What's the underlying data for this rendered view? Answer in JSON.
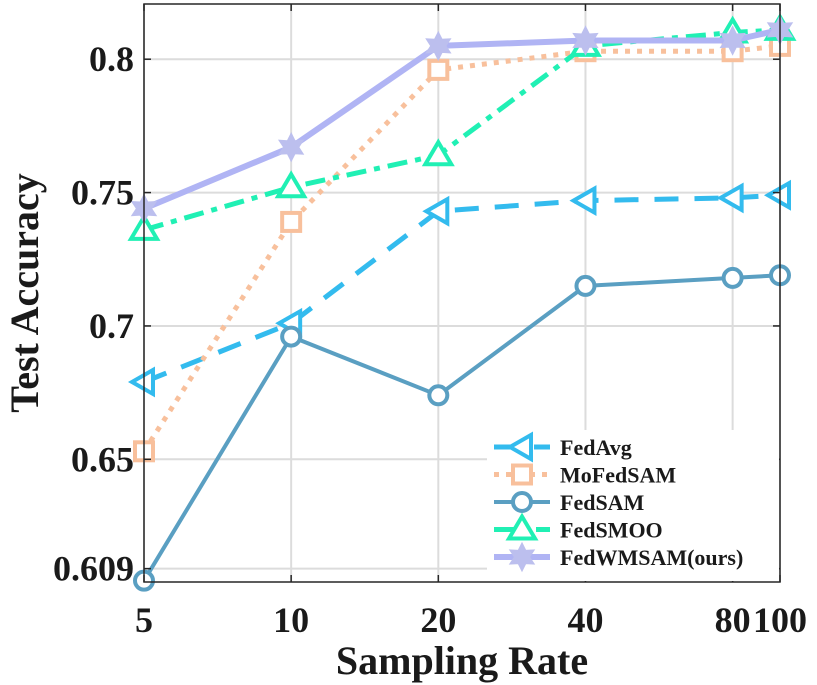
{
  "chart_data": {
    "type": "line",
    "title": "",
    "xlabel": "Sampling Rate",
    "ylabel": "Test Accuracy",
    "x_scale": "log",
    "xlim": [
      5,
      100
    ],
    "ylim": [
      0.604,
      0.8207
    ],
    "grid": true,
    "legend_position": "bottom-right",
    "x": [
      5,
      10,
      20,
      40,
      80,
      100
    ],
    "x_tick_labels": [
      "5",
      "10",
      "20",
      "40",
      "80",
      "100"
    ],
    "y_ticks": [
      0.609,
      0.65,
      0.7,
      0.75,
      0.8
    ],
    "y_tick_labels": [
      "0.609",
      "0.65",
      "0.7",
      "0.75",
      "0.8"
    ],
    "series": [
      {
        "name": "FedAvg",
        "color": "#33BBEE",
        "line_style": "dashed",
        "marker": "triangle-left",
        "values": [
          0.679,
          0.701,
          0.743,
          0.747,
          0.748,
          0.749
        ]
      },
      {
        "name": "MoFedSAM",
        "color": "#F8C09C",
        "line_style": "dotted",
        "marker": "square",
        "values": [
          0.653,
          0.739,
          0.796,
          0.803,
          0.803,
          0.805
        ]
      },
      {
        "name": "FedSAM",
        "color": "#5A9FC2",
        "line_style": "solid",
        "marker": "circle",
        "values": [
          0.6045,
          0.696,
          0.674,
          0.715,
          0.718,
          0.719
        ]
      },
      {
        "name": "FedSMOO",
        "color": "#20F0B4",
        "line_style": "dash-dot",
        "marker": "triangle-up",
        "values": [
          0.736,
          0.752,
          0.764,
          0.805,
          0.81,
          0.811
        ]
      },
      {
        "name": "FedWMSAM(ours)",
        "color": "#B0B4F4",
        "line_style": "solid-thick",
        "marker": "hexagram",
        "values": [
          0.744,
          0.767,
          0.805,
          0.807,
          0.807,
          0.811
        ]
      }
    ]
  }
}
